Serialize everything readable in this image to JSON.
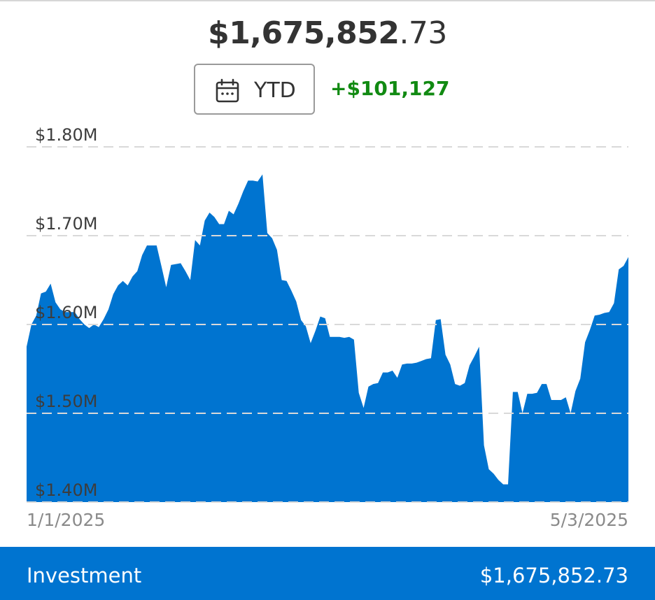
{
  "header": {
    "balance_whole": "$1,675,852",
    "balance_cents": ".73",
    "period_label": "YTD",
    "period_icon": "calendar-icon",
    "change": "+$101,127"
  },
  "colors": {
    "accent": "#0074d0",
    "positive": "#118a12",
    "text": "#333333",
    "grid": "#d9d9d9"
  },
  "chart_data": {
    "type": "area",
    "y_tick_labels": [
      "$1.80M",
      "$1.70M",
      "$1.60M",
      "$1.50M",
      "$1.40M"
    ],
    "y_ticks": [
      1.8,
      1.7,
      1.6,
      1.5,
      1.4
    ],
    "ylim": [
      1.4,
      1.8
    ],
    "x_start_label": "1/1/2025",
    "x_end_label": "5/3/2025",
    "grid": "horizontal-dashed",
    "series": [
      {
        "values": [
          1.575,
          1.6,
          1.61,
          1.635,
          1.637,
          1.646,
          1.625,
          1.617,
          1.614,
          1.614,
          1.614,
          1.606,
          1.6,
          1.596,
          1.6,
          1.597,
          1.606,
          1.617,
          1.634,
          1.644,
          1.649,
          1.644,
          1.654,
          1.66,
          1.678,
          1.689,
          1.689,
          1.689,
          1.666,
          1.642,
          1.667,
          1.668,
          1.669,
          1.66,
          1.65,
          1.695,
          1.689,
          1.717,
          1.726,
          1.721,
          1.713,
          1.713,
          1.728,
          1.724,
          1.736,
          1.75,
          1.762,
          1.762,
          1.761,
          1.769,
          1.703,
          1.697,
          1.684,
          1.65,
          1.649,
          1.638,
          1.626,
          1.605,
          1.598,
          1.579,
          1.593,
          1.609,
          1.607,
          1.586,
          1.586,
          1.586,
          1.585,
          1.586,
          1.583,
          1.523,
          1.506,
          1.53,
          1.533,
          1.534,
          1.546,
          1.546,
          1.548,
          1.54,
          1.555,
          1.556,
          1.556,
          1.557,
          1.559,
          1.561,
          1.562,
          1.605,
          1.606,
          1.566,
          1.555,
          1.533,
          1.531,
          1.534,
          1.554,
          1.564,
          1.575,
          1.464,
          1.437,
          1.432,
          1.425,
          1.42,
          1.42,
          1.524,
          1.524,
          1.5,
          1.522,
          1.522,
          1.523,
          1.533,
          1.533,
          1.515,
          1.515,
          1.515,
          1.518,
          1.5,
          1.525,
          1.539,
          1.58,
          1.594,
          1.61,
          1.611,
          1.613,
          1.614,
          1.624,
          1.662,
          1.666,
          1.676
        ]
      }
    ]
  },
  "footer": {
    "name": "Investment",
    "amount": "$1,675,852.73"
  }
}
